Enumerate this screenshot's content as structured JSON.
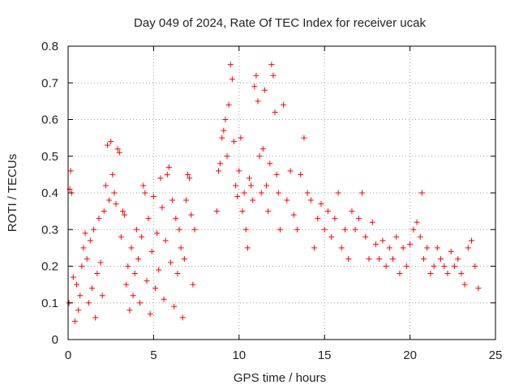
{
  "chart_data": {
    "type": "scatter",
    "title": "Day 049 of 2024, Rate Of TEC Index for receiver ucak",
    "xlabel": "GPS time / hours",
    "ylabel": "ROTI / TECUs",
    "xlim": [
      0,
      25
    ],
    "ylim": [
      0,
      0.8
    ],
    "x_ticks": [
      0,
      5,
      10,
      15,
      20,
      25
    ],
    "y_ticks": [
      0,
      0.1,
      0.2,
      0.3,
      0.4,
      0.5,
      0.6,
      0.7,
      0.8
    ],
    "x_tick_labels": [
      "0",
      "5",
      "10",
      "15",
      "20",
      "25"
    ],
    "y_tick_labels": [
      "0",
      "0.1",
      "0.2",
      "0.3",
      "0.4",
      "0.5",
      "0.6",
      "0.7",
      "0.8"
    ],
    "grid": true,
    "marker": "plus",
    "color": "#ff0000",
    "series": [
      {
        "points": [
          [
            0.05,
            0.1
          ],
          [
            0.1,
            0.41
          ],
          [
            0.15,
            0.46
          ],
          [
            0.2,
            0.4
          ],
          [
            0.3,
            0.17
          ],
          [
            0.4,
            0.05
          ],
          [
            0.5,
            0.15
          ],
          [
            0.6,
            0.08
          ],
          [
            0.7,
            0.12
          ],
          [
            0.8,
            0.2
          ],
          [
            0.9,
            0.25
          ],
          [
            1.0,
            0.29
          ],
          [
            1.1,
            0.22
          ],
          [
            1.2,
            0.1
          ],
          [
            1.3,
            0.27
          ],
          [
            1.4,
            0.14
          ],
          [
            1.5,
            0.3
          ],
          [
            1.6,
            0.06
          ],
          [
            1.7,
            0.18
          ],
          [
            1.8,
            0.33
          ],
          [
            1.9,
            0.21
          ],
          [
            2.0,
            0.12
          ],
          [
            2.1,
            0.35
          ],
          [
            2.2,
            0.42
          ],
          [
            2.3,
            0.53
          ],
          [
            2.4,
            0.38
          ],
          [
            2.5,
            0.54
          ],
          [
            2.6,
            0.45
          ],
          [
            2.7,
            0.4
          ],
          [
            2.8,
            0.37
          ],
          [
            2.9,
            0.52
          ],
          [
            3.0,
            0.51
          ],
          [
            3.1,
            0.28
          ],
          [
            3.2,
            0.35
          ],
          [
            3.3,
            0.34
          ],
          [
            3.4,
            0.15
          ],
          [
            3.5,
            0.2
          ],
          [
            3.6,
            0.08
          ],
          [
            3.7,
            0.25
          ],
          [
            3.8,
            0.12
          ],
          [
            3.9,
            0.18
          ],
          [
            4.0,
            0.3
          ],
          [
            4.1,
            0.22
          ],
          [
            4.2,
            0.1
          ],
          [
            4.3,
            0.28
          ],
          [
            4.4,
            0.42
          ],
          [
            4.5,
            0.4
          ],
          [
            4.6,
            0.16
          ],
          [
            4.7,
            0.33
          ],
          [
            4.8,
            0.07
          ],
          [
            4.9,
            0.24
          ],
          [
            5.0,
            0.39
          ],
          [
            5.1,
            0.14
          ],
          [
            5.2,
            0.29
          ],
          [
            5.3,
            0.19
          ],
          [
            5.4,
            0.44
          ],
          [
            5.5,
            0.36
          ],
          [
            5.6,
            0.11
          ],
          [
            5.7,
            0.27
          ],
          [
            5.8,
            0.45
          ],
          [
            5.9,
            0.47
          ],
          [
            6.0,
            0.21
          ],
          [
            6.1,
            0.38
          ],
          [
            6.2,
            0.09
          ],
          [
            6.3,
            0.33
          ],
          [
            6.4,
            0.18
          ],
          [
            6.5,
            0.3
          ],
          [
            6.6,
            0.25
          ],
          [
            6.7,
            0.06
          ],
          [
            6.8,
            0.22
          ],
          [
            6.9,
            0.38
          ],
          [
            7.0,
            0.45
          ],
          [
            7.1,
            0.44
          ],
          [
            7.2,
            0.34
          ],
          [
            7.3,
            0.15
          ],
          [
            7.4,
            0.3
          ],
          [
            8.7,
            0.35
          ],
          [
            8.8,
            0.46
          ],
          [
            8.9,
            0.48
          ],
          [
            9.0,
            0.55
          ],
          [
            9.1,
            0.57
          ],
          [
            9.2,
            0.6
          ],
          [
            9.3,
            0.5
          ],
          [
            9.4,
            0.64
          ],
          [
            9.5,
            0.75
          ],
          [
            9.6,
            0.71
          ],
          [
            9.7,
            0.54
          ],
          [
            9.8,
            0.42
          ],
          [
            9.9,
            0.39
          ],
          [
            10.0,
            0.46
          ],
          [
            10.1,
            0.55
          ],
          [
            10.2,
            0.35
          ],
          [
            10.3,
            0.4
          ],
          [
            10.4,
            0.3
          ],
          [
            10.5,
            0.25
          ],
          [
            10.6,
            0.44
          ],
          [
            10.7,
            0.42
          ],
          [
            10.8,
            0.38
          ],
          [
            10.9,
            0.69
          ],
          [
            11.0,
            0.72
          ],
          [
            11.1,
            0.65
          ],
          [
            11.2,
            0.5
          ],
          [
            11.3,
            0.4
          ],
          [
            11.4,
            0.52
          ],
          [
            11.5,
            0.68
          ],
          [
            11.6,
            0.42
          ],
          [
            11.7,
            0.35
          ],
          [
            11.8,
            0.48
          ],
          [
            11.9,
            0.75
          ],
          [
            12.0,
            0.72
          ],
          [
            12.1,
            0.62
          ],
          [
            12.2,
            0.45
          ],
          [
            12.3,
            0.4
          ],
          [
            12.4,
            0.3
          ],
          [
            12.6,
            0.64
          ],
          [
            12.8,
            0.38
          ],
          [
            13.0,
            0.46
          ],
          [
            13.2,
            0.34
          ],
          [
            13.4,
            0.3
          ],
          [
            13.6,
            0.45
          ],
          [
            13.8,
            0.55
          ],
          [
            14.0,
            0.4
          ],
          [
            14.2,
            0.38
          ],
          [
            14.4,
            0.25
          ],
          [
            14.6,
            0.33
          ],
          [
            14.8,
            0.37
          ],
          [
            15.0,
            0.3
          ],
          [
            15.2,
            0.35
          ],
          [
            15.4,
            0.28
          ],
          [
            15.6,
            0.33
          ],
          [
            15.8,
            0.4
          ],
          [
            16.0,
            0.25
          ],
          [
            16.2,
            0.3
          ],
          [
            16.4,
            0.22
          ],
          [
            16.6,
            0.35
          ],
          [
            16.8,
            0.3
          ],
          [
            17.0,
            0.33
          ],
          [
            17.2,
            0.4
          ],
          [
            17.4,
            0.28
          ],
          [
            17.6,
            0.22
          ],
          [
            17.8,
            0.32
          ],
          [
            18.0,
            0.26
          ],
          [
            18.2,
            0.22
          ],
          [
            18.4,
            0.27
          ],
          [
            18.6,
            0.2
          ],
          [
            18.8,
            0.25
          ],
          [
            19.0,
            0.22
          ],
          [
            19.2,
            0.28
          ],
          [
            19.4,
            0.18
          ],
          [
            19.6,
            0.25
          ],
          [
            19.8,
            0.2
          ],
          [
            20.0,
            0.26
          ],
          [
            20.2,
            0.3
          ],
          [
            20.4,
            0.32
          ],
          [
            20.6,
            0.28
          ],
          [
            20.7,
            0.4
          ],
          [
            20.8,
            0.22
          ],
          [
            21.0,
            0.25
          ],
          [
            21.2,
            0.18
          ],
          [
            21.4,
            0.2
          ],
          [
            21.6,
            0.25
          ],
          [
            21.8,
            0.22
          ],
          [
            22.0,
            0.2
          ],
          [
            22.2,
            0.18
          ],
          [
            22.4,
            0.24
          ],
          [
            22.6,
            0.2
          ],
          [
            22.8,
            0.22
          ],
          [
            23.0,
            0.18
          ],
          [
            23.2,
            0.15
          ],
          [
            23.4,
            0.25
          ],
          [
            23.6,
            0.27
          ],
          [
            23.8,
            0.2
          ],
          [
            24.0,
            0.14
          ]
        ]
      }
    ]
  }
}
